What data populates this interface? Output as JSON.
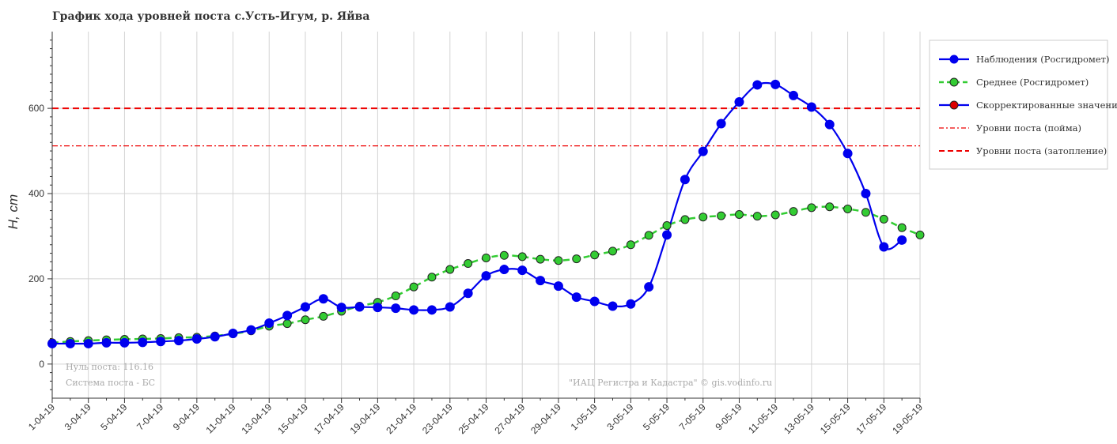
{
  "chart_data": {
    "type": "line",
    "title": "График хода уровней поста с.Усть-Игум, р. Яйва",
    "ylabel": "H, cm",
    "xlabel": "",
    "ylim": [
      -80,
      780
    ],
    "yticks": [
      0,
      200,
      400,
      600
    ],
    "grid": true,
    "legend_position": "top-right",
    "x_tick_labels": [
      "1-04-19",
      "3-04-19",
      "5-04-19",
      "7-04-19",
      "9-04-19",
      "11-04-19",
      "13-04-19",
      "15-04-19",
      "17-04-19",
      "19-04-19",
      "21-04-19",
      "23-04-19",
      "25-04-19",
      "27-04-19",
      "29-04-19",
      "1-05-19",
      "3-05-19",
      "5-05-19",
      "7-05-19",
      "9-05-19",
      "11-05-19",
      "13-05-19",
      "15-05-19",
      "17-05-19",
      "19-05-19"
    ],
    "dates": [
      "1-04-19",
      "2-04-19",
      "3-04-19",
      "4-04-19",
      "5-04-19",
      "6-04-19",
      "7-04-19",
      "8-04-19",
      "9-04-19",
      "10-04-19",
      "11-04-19",
      "12-04-19",
      "13-04-19",
      "14-04-19",
      "15-04-19",
      "16-04-19",
      "17-04-19",
      "18-04-19",
      "19-04-19",
      "20-04-19",
      "21-04-19",
      "22-04-19",
      "23-04-19",
      "24-04-19",
      "25-04-19",
      "26-04-19",
      "27-04-19",
      "28-04-19",
      "29-04-19",
      "30-04-19",
      "1-05-19",
      "2-05-19",
      "3-05-19",
      "4-05-19",
      "5-05-19",
      "6-05-19",
      "7-05-19",
      "8-05-19",
      "9-05-19",
      "10-05-19",
      "11-05-19",
      "12-05-19",
      "13-05-19",
      "14-05-19",
      "15-05-19",
      "16-05-19",
      "17-05-19",
      "18-05-19",
      "19-05-19"
    ],
    "series": [
      {
        "name": "Наблюдения (Росгидромет)",
        "color": "#0000ee",
        "line": "solid",
        "values": [
          48,
          48,
          48,
          50,
          50,
          51,
          53,
          55,
          59,
          64,
          72,
          80,
          96,
          114,
          134,
          153,
          133,
          134,
          133,
          131,
          127,
          127,
          134,
          166,
          207,
          222,
          220,
          196,
          183,
          157,
          147,
          136,
          141,
          181,
          303,
          433,
          499,
          564,
          615,
          655,
          656,
          630,
          603,
          562,
          494,
          400,
          275,
          null,
          null
        ]
      },
      {
        "name": "Среднее (Росгидромет)",
        "color": "#33cc33",
        "line": "dashed",
        "values": [
          50,
          53,
          55,
          57,
          58,
          59,
          60,
          62,
          63,
          66,
          71,
          78,
          89,
          95,
          104,
          112,
          124,
          136,
          145,
          160,
          181,
          204,
          222,
          236,
          249,
          255,
          252,
          246,
          243,
          247,
          256,
          265,
          280,
          302,
          325,
          339,
          345,
          348,
          351,
          347,
          350,
          358,
          367,
          369,
          364,
          356,
          340,
          320,
          303
        ]
      },
      {
        "name": "Скорректированные значения",
        "color": "#0000ee",
        "marker_color": "#dd0000",
        "line": "solid",
        "values": [
          null,
          null,
          null,
          null,
          null,
          null,
          null,
          null,
          null,
          null,
          null,
          null,
          null,
          null,
          null,
          null,
          null,
          null,
          null,
          null,
          null,
          null,
          null,
          null,
          null,
          null,
          null,
          null,
          null,
          null,
          null,
          null,
          null,
          null,
          null,
          null,
          null,
          null,
          null,
          null,
          null,
          null,
          null,
          null,
          null,
          null,
          275,
          291,
          null
        ]
      }
    ],
    "reference_lines": [
      {
        "name": "Уровни поста (пойма)",
        "value": 512,
        "color": "#ee0000",
        "style": "dashdot"
      },
      {
        "name": "Уровни поста (затопление)",
        "value": 600,
        "color": "#ee0000",
        "style": "dashed"
      }
    ],
    "notes": {
      "zero": "Нуль поста: 116.16",
      "system": "Система поста - БС",
      "credit": "\"ИАЦ Регистра и Кадастра\" © gis.vodinfo.ru"
    }
  }
}
